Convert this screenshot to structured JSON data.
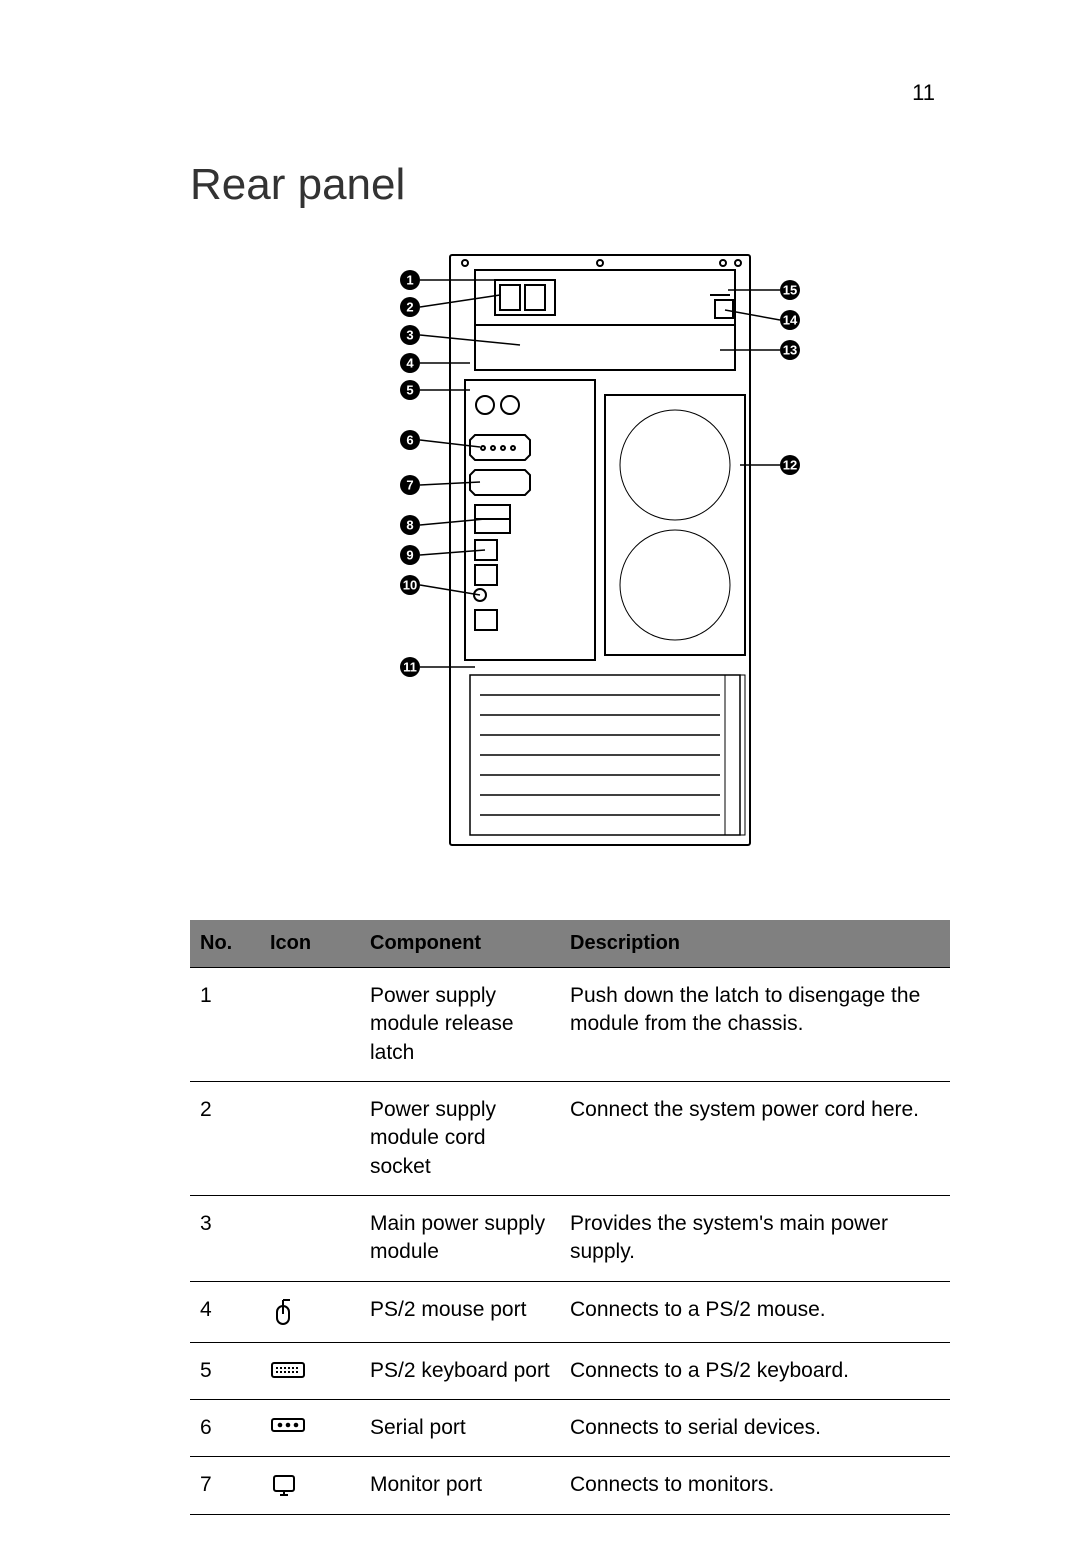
{
  "page_number": "11",
  "title": "Rear panel",
  "table": {
    "headers": {
      "no": "No.",
      "icon": "Icon",
      "component": "Component",
      "description": "Description"
    },
    "rows": [
      {
        "no": "1",
        "icon": "",
        "component": "Power supply module release latch",
        "description": "Push down the latch to disengage the module from the chassis."
      },
      {
        "no": "2",
        "icon": "",
        "component": "Power supply module cord socket",
        "description": "Connect the system power cord here."
      },
      {
        "no": "3",
        "icon": "",
        "component": "Main power supply module",
        "description": "Provides the system's main power supply."
      },
      {
        "no": "4",
        "icon": "mouse",
        "component": "PS/2 mouse port",
        "description": "Connects to a PS/2 mouse."
      },
      {
        "no": "5",
        "icon": "keyboard",
        "component": "PS/2 keyboard port",
        "description": "Connects to a PS/2 keyboard."
      },
      {
        "no": "6",
        "icon": "serial",
        "component": "Serial port",
        "description": "Connects to serial devices."
      },
      {
        "no": "7",
        "icon": "monitor",
        "component": "Monitor port",
        "description": "Connects to monitors."
      }
    ]
  },
  "diagram": {
    "left_callouts": [
      1,
      2,
      3,
      4,
      5,
      6,
      7,
      8,
      9,
      10,
      11
    ],
    "right_callouts": [
      15,
      14,
      13,
      12
    ]
  },
  "styling": {
    "page_bg": "#ffffff",
    "text_color": "#000000",
    "title_fontsize": 44,
    "title_weight": 300,
    "body_fontsize": 21,
    "header_bg": "#808080",
    "header_fontsize": 20,
    "rule_color": "#000000",
    "callout_bg": "#000000",
    "callout_fg": "#ffffff",
    "callout_radius": 10
  }
}
